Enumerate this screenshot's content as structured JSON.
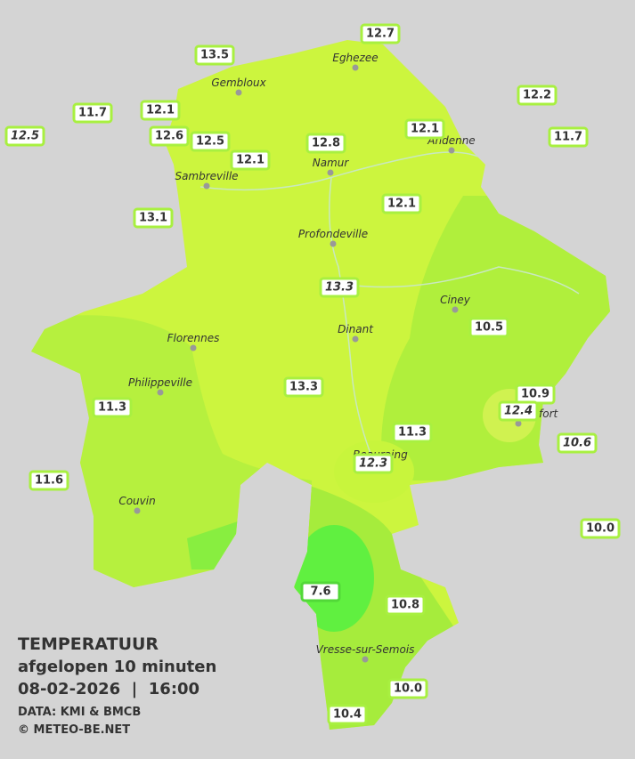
{
  "title": "TEMPERATUUR",
  "subtitle": "afgelopen 10 minuten",
  "datetime": "08-02-2026  |  16:00",
  "source": "DATA: KMI & BMCB",
  "copyright": "© METEO-BE.NET",
  "cities": [
    "Eghezee",
    "Gembloux",
    "Andenne",
    "Namur",
    "Sambreville",
    "Profondeville",
    "Ciney",
    "Dinant",
    "Florennes",
    "Philippeville",
    "Rochefort",
    "Beauraing",
    "Couvin",
    "Vresse-sur-Semois"
  ],
  "stations": [
    "12.7",
    "13.5",
    "12.2",
    "11.7",
    "12.1",
    "12.5",
    "12.6",
    "12.5",
    "12.1",
    "11.7",
    "12.8",
    "12.1",
    "13.1",
    "12.1",
    "13.3",
    "10.5",
    "13.3",
    "10.9",
    "12.4",
    "11.3",
    "11.3",
    "10.6",
    "12.3",
    "11.6",
    "10.0",
    "7.6",
    "10.8",
    "10.0",
    "10.4"
  ]
}
